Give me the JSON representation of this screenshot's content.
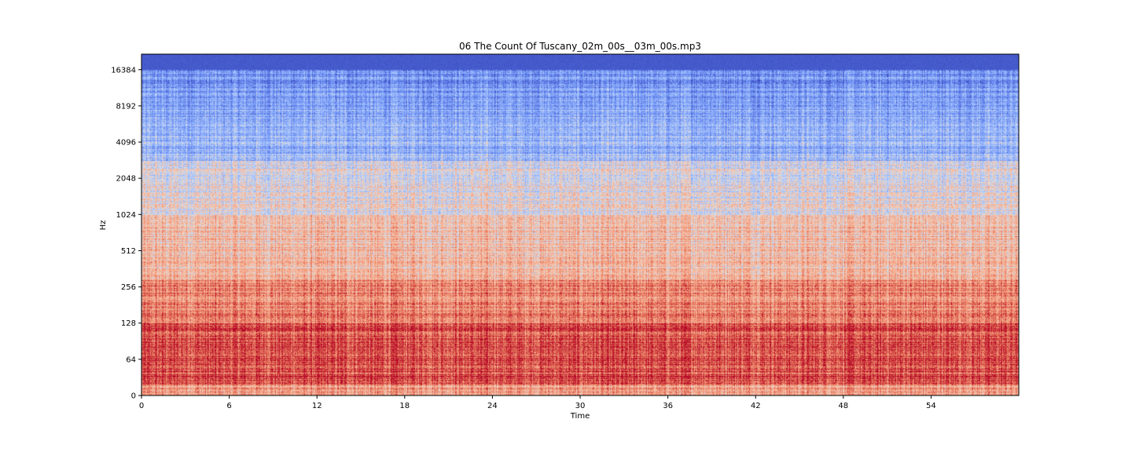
{
  "chart_data": {
    "type": "heatmap",
    "subtype": "spectrogram",
    "title": "06 The Count Of Tuscany_02m_00s__03m_00s.mp3",
    "xlabel": "Time",
    "ylabel": "Hz",
    "x_ticks": [
      "0",
      "6",
      "12",
      "18",
      "24",
      "30",
      "36",
      "42",
      "48",
      "54"
    ],
    "x_tick_values": [
      0,
      6,
      12,
      18,
      24,
      30,
      36,
      42,
      48,
      54
    ],
    "xlim": [
      0,
      60
    ],
    "y_scale": "log",
    "y_ticks": [
      "0",
      "64",
      "128",
      "256",
      "512",
      "1024",
      "2048",
      "4096",
      "8192",
      "16384"
    ],
    "y_tick_values": [
      0,
      64,
      128,
      256,
      512,
      1024,
      2048,
      4096,
      8192,
      16384
    ],
    "ylim": [
      0,
      22050
    ],
    "colormap": "coolwarm",
    "colors": {
      "low": "#3b4cc0",
      "mid": "#dddddd",
      "high": "#b40426"
    },
    "grid": false,
    "legend": "none"
  }
}
